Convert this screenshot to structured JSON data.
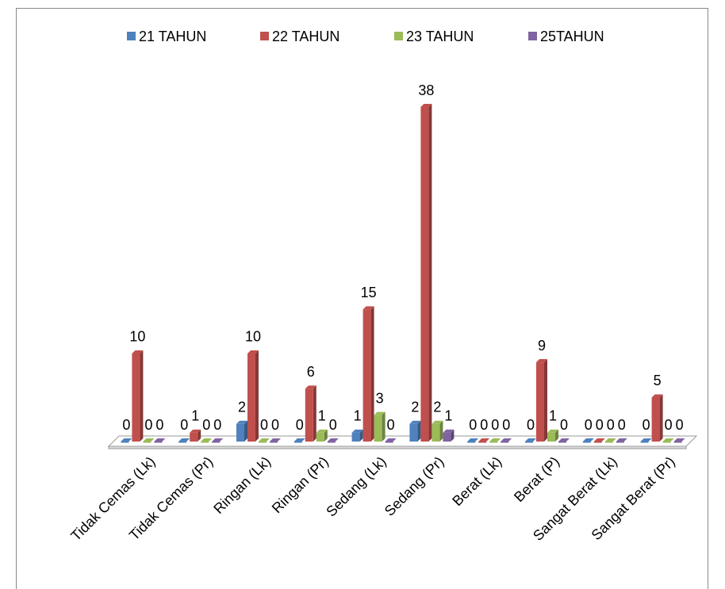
{
  "chart_data": {
    "type": "bar3d",
    "categories": [
      "Tidak Cemas (Lk)",
      "Tidak Cemas (Pr)",
      "Ringan (Lk)",
      "Ringan (Pr)",
      "Sedang (Lk)",
      "Sedang (Pr)",
      "Berat (Lk)",
      "Berat (P)",
      "Sangat Berat (Lk)",
      "Sangat Berat (Pr)"
    ],
    "series": [
      {
        "name": "21 TAHUN",
        "color": "#4f81bd",
        "values": [
          0,
          0,
          2,
          0,
          1,
          2,
          0,
          0,
          0,
          0
        ]
      },
      {
        "name": "22 TAHUN",
        "color": "#c0504d",
        "values": [
          10,
          1,
          10,
          6,
          15,
          38,
          0,
          9,
          0,
          5
        ]
      },
      {
        "name": "23 TAHUN",
        "color": "#9bbb59",
        "values": [
          0,
          0,
          0,
          1,
          3,
          2,
          0,
          1,
          0,
          0
        ]
      },
      {
        "name": "25TAHUN",
        "color": "#8064a2",
        "values": [
          0,
          0,
          0,
          0,
          0,
          1,
          0,
          0,
          0,
          0
        ]
      }
    ],
    "legend": "top"
  }
}
